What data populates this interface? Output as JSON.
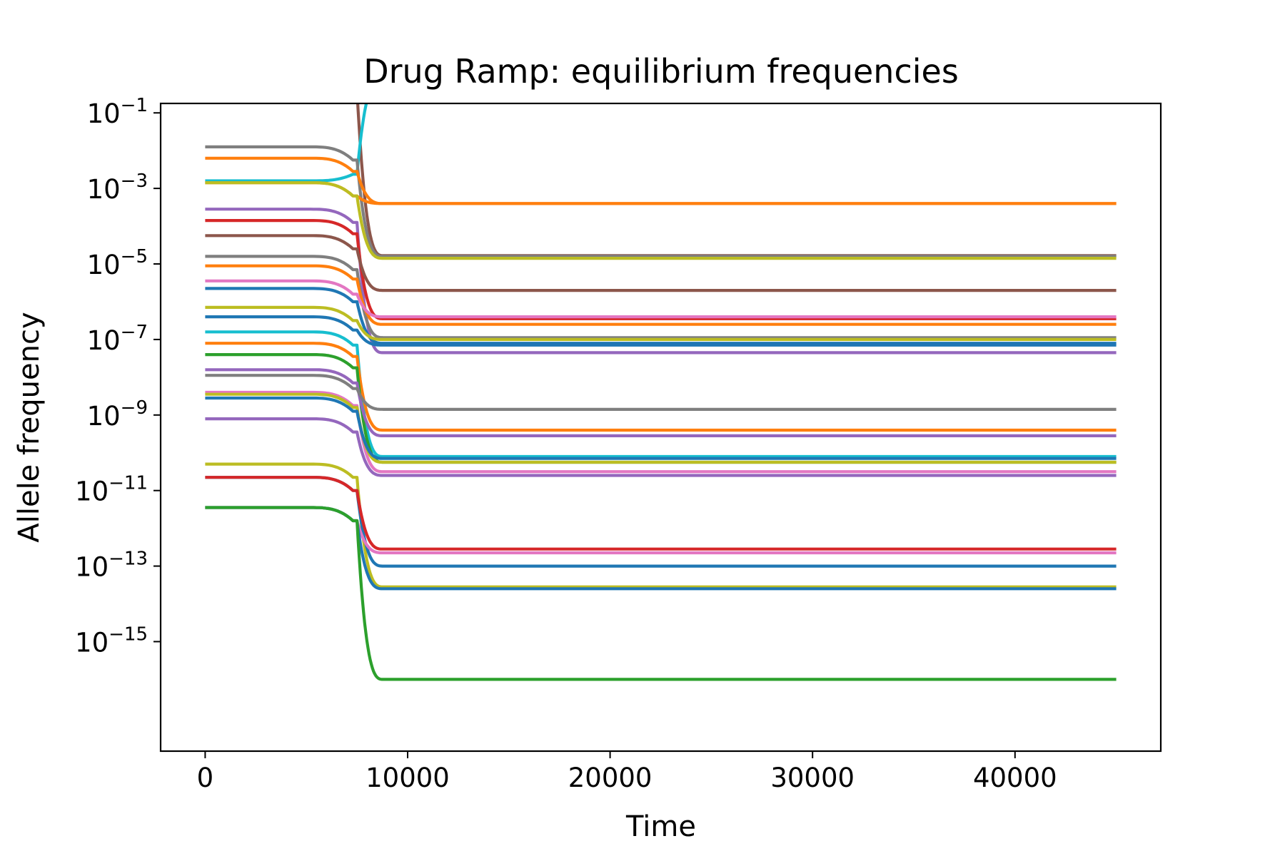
{
  "chart_data": {
    "type": "line",
    "title": "Drug Ramp: equilibrium frequencies",
    "xlabel": "Time",
    "ylabel": "Allele frequency",
    "yscale": "log",
    "xlim": [
      -2200,
      47200
    ],
    "ylim_log10": [
      -17.9,
      -0.75
    ],
    "xticks": [
      0,
      10000,
      20000,
      30000,
      40000
    ],
    "yticks": [
      {
        "base": "10",
        "exp": "−1",
        "log10": -1
      },
      {
        "base": "10",
        "exp": "−3",
        "log10": -3
      },
      {
        "base": "10",
        "exp": "−5",
        "log10": -5
      },
      {
        "base": "10",
        "exp": "−7",
        "log10": -7
      },
      {
        "base": "10",
        "exp": "−9",
        "log10": -9
      },
      {
        "base": "10",
        "exp": "−11",
        "log10": -11
      },
      {
        "base": "10",
        "exp": "−13",
        "log10": -13
      },
      {
        "base": "10",
        "exp": "−15",
        "log10": -15
      }
    ],
    "grid": false,
    "legend": "none",
    "x_start": 0,
    "x_end": 45000,
    "transition_time": 7500,
    "series": [
      {
        "color": "#8c564b",
        "initial_log10": -0.05,
        "final_log10": -4.78
      },
      {
        "color": "#17becf",
        "initial_log10": -2.8,
        "final_log10": -0.05
      },
      {
        "color": "#7f7f7f",
        "initial_log10": -1.9,
        "final_log10": -4.8
      },
      {
        "color": "#ff7f0e",
        "initial_log10": -2.2,
        "final_log10": -3.4
      },
      {
        "color": "#ff7f0e",
        "initial_log10": -2.85,
        "final_log10": -3.4
      },
      {
        "color": "#bcbd22",
        "initial_log10": -2.85,
        "final_log10": -4.85
      },
      {
        "color": "#9467bd",
        "initial_log10": -3.55,
        "final_log10": -7.35
      },
      {
        "color": "#d62728",
        "initial_log10": -3.85,
        "final_log10": -6.45
      },
      {
        "color": "#8c564b",
        "initial_log10": -4.25,
        "final_log10": -5.7
      },
      {
        "color": "#7f7f7f",
        "initial_log10": -4.8,
        "final_log10": -6.95
      },
      {
        "color": "#ff7f0e",
        "initial_log10": -5.05,
        "final_log10": -6.6
      },
      {
        "color": "#e377c2",
        "initial_log10": -5.45,
        "final_log10": -6.4
      },
      {
        "color": "#1f77b4",
        "initial_log10": -5.65,
        "final_log10": -7.1
      },
      {
        "color": "#bcbd22",
        "initial_log10": -6.15,
        "final_log10": -7.0
      },
      {
        "color": "#1f77b4",
        "initial_log10": -6.4,
        "final_log10": -7.15
      },
      {
        "color": "#17becf",
        "initial_log10": -6.8,
        "final_log10": -10.1
      },
      {
        "color": "#ff7f0e",
        "initial_log10": -7.1,
        "final_log10": -9.4
      },
      {
        "color": "#2ca02c",
        "initial_log10": -7.4,
        "final_log10": -10.25
      },
      {
        "color": "#9467bd",
        "initial_log10": -7.8,
        "final_log10": -9.55
      },
      {
        "color": "#7f7f7f",
        "initial_log10": -7.95,
        "final_log10": -8.85
      },
      {
        "color": "#e377c2",
        "initial_log10": -8.4,
        "final_log10": -10.5
      },
      {
        "color": "#bcbd22",
        "initial_log10": -8.45,
        "final_log10": -10.25
      },
      {
        "color": "#1f77b4",
        "initial_log10": -8.55,
        "final_log10": -10.15
      },
      {
        "color": "#9467bd",
        "initial_log10": -9.1,
        "final_log10": -10.6
      },
      {
        "color": "#bcbd22",
        "initial_log10": -10.3,
        "final_log10": -13.55
      },
      {
        "color": "#1f77b4",
        "initial_log10": -10.65,
        "final_log10": -13.0
      },
      {
        "color": "#d62728",
        "initial_log10": -10.65,
        "final_log10": -12.55
      },
      {
        "color": "#e377c2",
        "initial_log10": -11.45,
        "final_log10": -12.65
      },
      {
        "color": "#1f77b4",
        "initial_log10": -11.45,
        "final_log10": -13.6
      },
      {
        "color": "#2ca02c",
        "initial_log10": -11.45,
        "final_log10": -16.0
      }
    ]
  }
}
